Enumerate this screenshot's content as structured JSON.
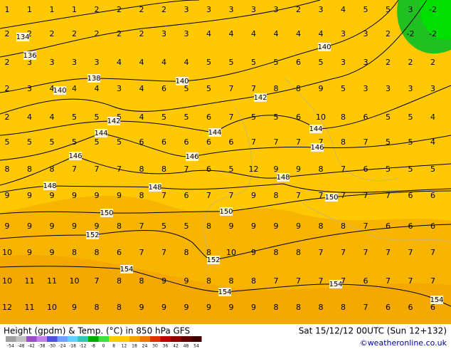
{
  "title": "Height (gpdm) & Temp. (°C) in 850 hPa GFS",
  "valid": "Sat 15/12/12 00UTC (Sun 12+132)",
  "credit": "©weatheronline.co.uk",
  "colorbar": {
    "labels": [
      "-54",
      "-48",
      "-42",
      "-38",
      "-30",
      "-24",
      "-18",
      "-12",
      "-8",
      "0",
      "8",
      "12",
      "18",
      "24",
      "30",
      "36",
      "42",
      "48",
      "54"
    ],
    "colors": [
      "#a0a0a0",
      "#c0c0c0",
      "#9a4fc8",
      "#c080e8",
      "#5050e0",
      "#6fa0ff",
      "#60d0ff",
      "#30c8b0",
      "#00b000",
      "#40e040",
      "#f5d000",
      "#ffc800",
      "#f5a000",
      "#f07800",
      "#e03000",
      "#c00000",
      "#900000",
      "#600000",
      "#400000"
    ]
  },
  "contour_labels": [
    "134",
    "136",
    "138",
    "140",
    "140",
    "140",
    "142",
    "142",
    "144",
    "144",
    "144",
    "146",
    "146",
    "146",
    "148",
    "148",
    "148",
    "150",
    "150",
    "150",
    "152",
    "152",
    "154",
    "154",
    "154",
    "154"
  ],
  "temperatures": [
    [
      "1",
      "1",
      "1",
      "1",
      "2",
      "2",
      "2",
      "2",
      "3",
      "3",
      "3",
      "3",
      "3",
      "2",
      "3",
      "4",
      "5",
      "5",
      "3",
      "-2"
    ],
    [
      "2",
      "2",
      "2",
      "2",
      "2",
      "2",
      "2",
      "3",
      "3",
      "4",
      "4",
      "4",
      "4",
      "4",
      "4",
      "3",
      "3",
      "2",
      "-2",
      "-2"
    ],
    [
      "2",
      "3",
      "3",
      "3",
      "3",
      "4",
      "4",
      "4",
      "4",
      "5",
      "5",
      "5",
      "5",
      "6",
      "5",
      "3",
      "3",
      "2",
      "2",
      "2"
    ],
    [
      "2",
      "3",
      "4",
      "4",
      "4",
      "3",
      "4",
      "6",
      "5",
      "5",
      "7",
      "7",
      "8",
      "8",
      "9",
      "5",
      "3",
      "3",
      "3",
      "3"
    ],
    [
      "2",
      "4",
      "4",
      "5",
      "5",
      "5",
      "4",
      "5",
      "5",
      "6",
      "7",
      "5",
      "5",
      "6",
      "10",
      "8",
      "6",
      "5",
      "5",
      "4"
    ],
    [
      "5",
      "5",
      "5",
      "5",
      "5",
      "5",
      "6",
      "6",
      "6",
      "6",
      "6",
      "7",
      "7",
      "7",
      "7",
      "8",
      "7",
      "5",
      "5",
      "4"
    ],
    [
      "8",
      "8",
      "8",
      "7",
      "7",
      "7",
      "8",
      "8",
      "7",
      "6",
      "5",
      "12",
      "9",
      "9",
      "8",
      "7",
      "6",
      "5",
      "5",
      "5"
    ],
    [
      "9",
      "9",
      "9",
      "9",
      "9",
      "9",
      "8",
      "7",
      "6",
      "7",
      "7",
      "9",
      "8",
      "7",
      "7",
      "7",
      "7",
      "7",
      "6",
      "6"
    ],
    [
      "9",
      "9",
      "9",
      "9",
      "9",
      "8",
      "7",
      "5",
      "5",
      "8",
      "9",
      "9",
      "9",
      "9",
      "8",
      "8",
      "7",
      "6",
      "6",
      "6"
    ],
    [
      "10",
      "9",
      "9",
      "8",
      "8",
      "6",
      "7",
      "7",
      "8",
      "8",
      "10",
      "9",
      "8",
      "8",
      "7",
      "7",
      "7",
      "7",
      "7",
      "7"
    ],
    [
      "10",
      "11",
      "11",
      "10",
      "7",
      "8",
      "8",
      "9",
      "9",
      "8",
      "8",
      "8",
      "7",
      "7",
      "7",
      "7",
      "6",
      "7",
      "7",
      "7"
    ],
    [
      "12",
      "11",
      "10",
      "9",
      "8",
      "8",
      "9",
      "9",
      "9",
      "9",
      "9",
      "9",
      "8",
      "8",
      "8",
      "8",
      "7",
      "6",
      "6",
      "6"
    ]
  ]
}
